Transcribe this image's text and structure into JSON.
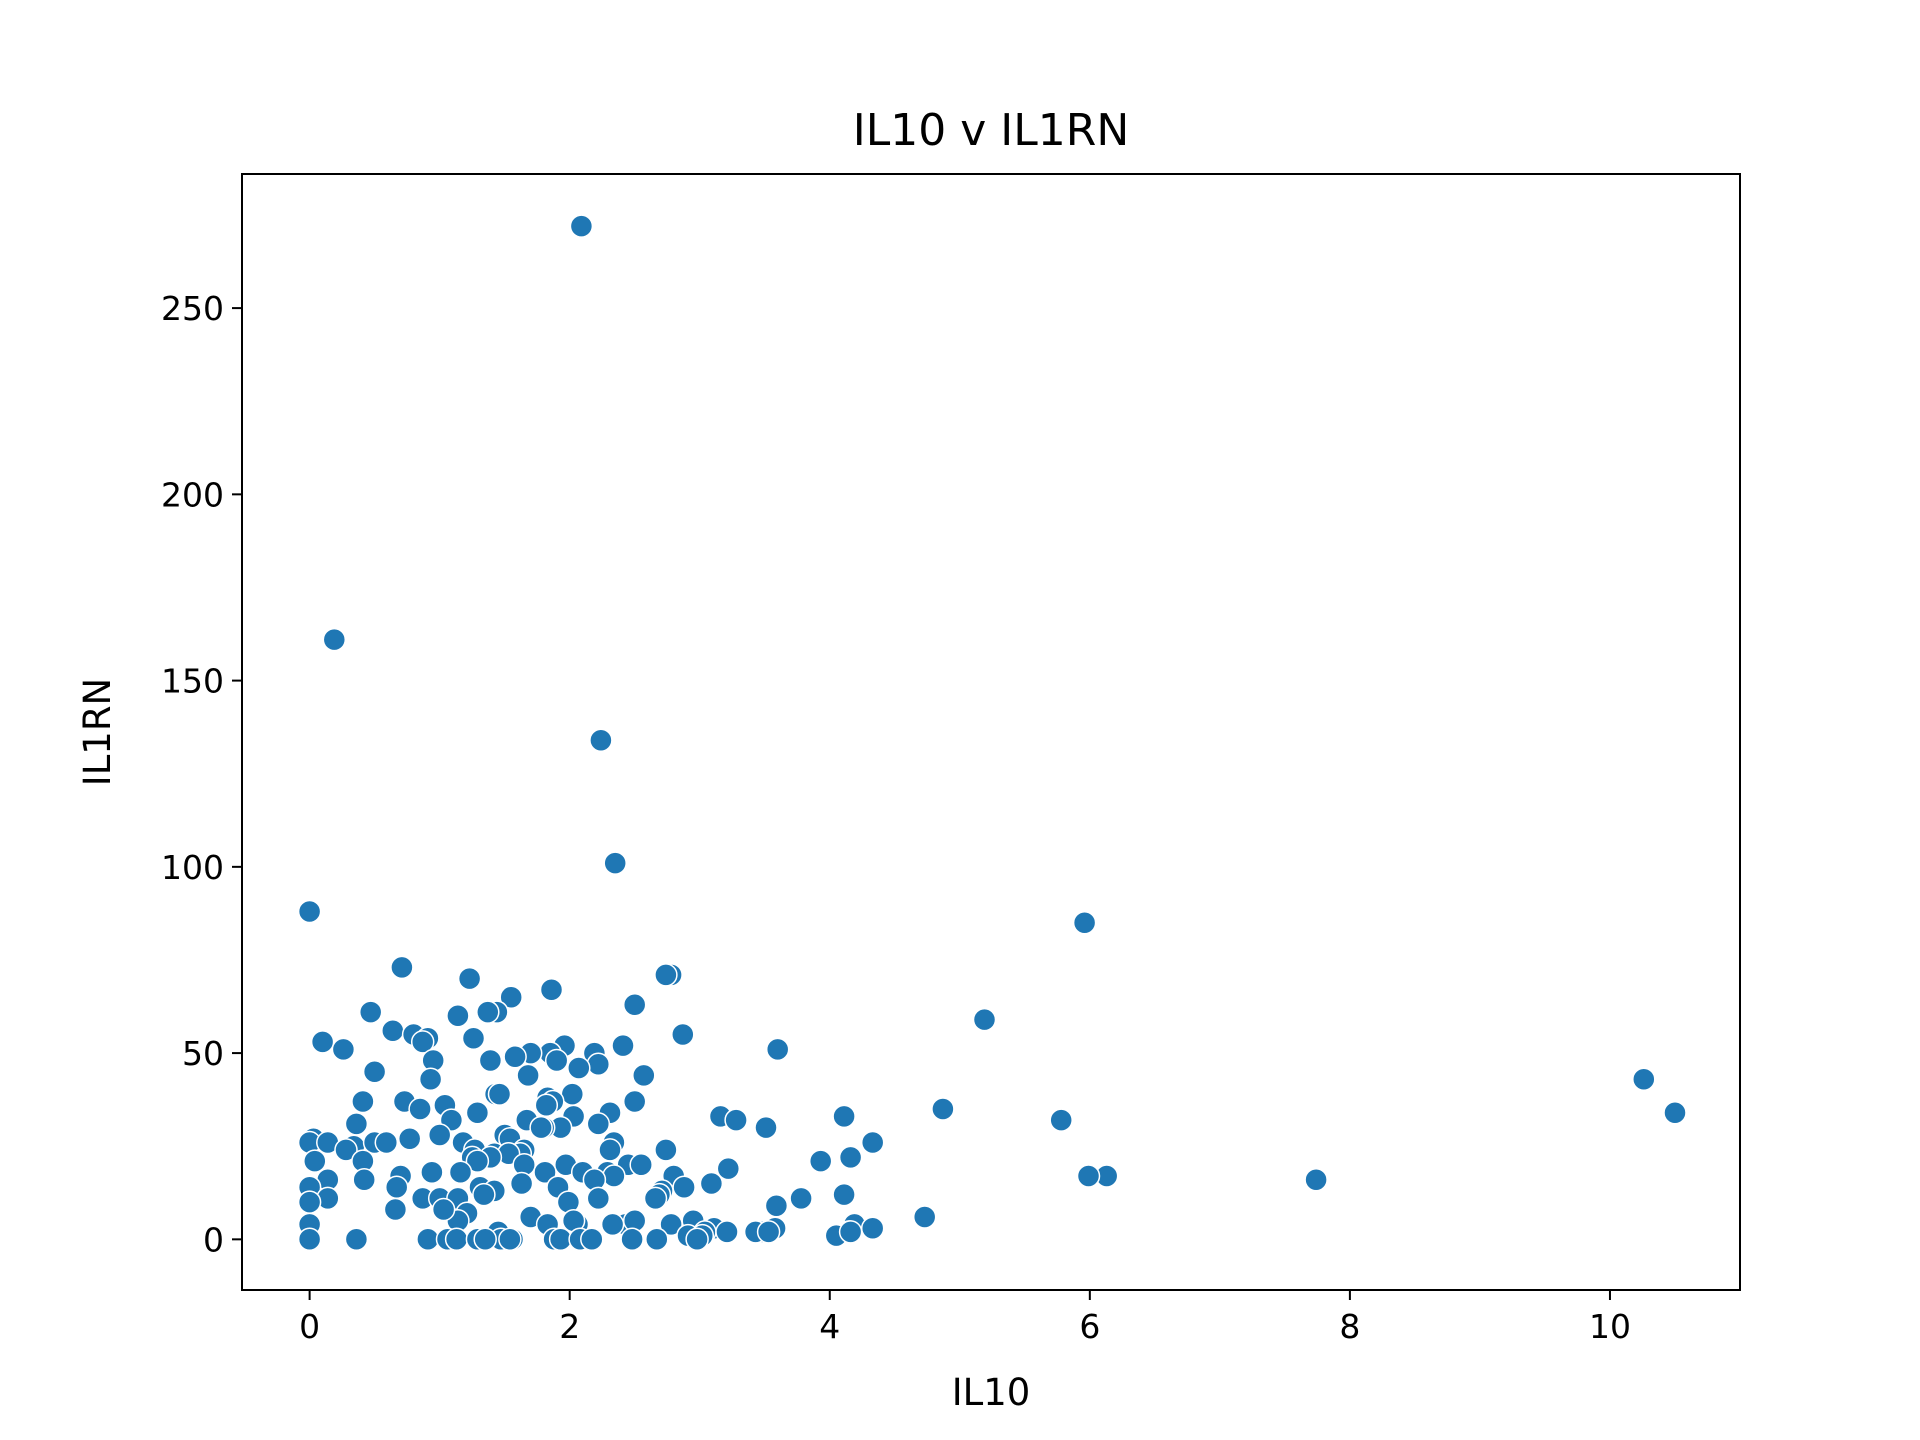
{
  "chart_data": {
    "type": "scatter",
    "title": "IL10 v IL1RN",
    "xlabel": "IL10",
    "ylabel": "IL1RN",
    "xlim": [
      -0.52,
      11.0
    ],
    "ylim": [
      -13.6,
      286.0
    ],
    "xticks": [
      0,
      2,
      4,
      6,
      8,
      10
    ],
    "yticks": [
      0,
      50,
      100,
      150,
      200,
      250
    ],
    "grid": false,
    "color": "#1f77b4",
    "edge_color": "#ffffff",
    "points": [
      [
        2.09,
        272
      ],
      [
        0.19,
        161
      ],
      [
        2.24,
        134
      ],
      [
        2.35,
        101
      ],
      [
        0.0,
        88
      ],
      [
        5.96,
        85
      ],
      [
        0.71,
        73
      ],
      [
        2.78,
        71
      ],
      [
        2.74,
        71
      ],
      [
        1.23,
        70
      ],
      [
        1.86,
        67
      ],
      [
        1.55,
        65
      ],
      [
        2.5,
        63
      ],
      [
        0.47,
        61
      ],
      [
        1.44,
        61
      ],
      [
        1.37,
        61
      ],
      [
        1.14,
        60
      ],
      [
        5.19,
        59
      ],
      [
        0.64,
        56
      ],
      [
        0.8,
        55
      ],
      [
        0.91,
        54
      ],
      [
        1.26,
        54
      ],
      [
        2.87,
        55
      ],
      [
        0.1,
        53
      ],
      [
        0.87,
        53
      ],
      [
        1.96,
        52
      ],
      [
        2.41,
        52
      ],
      [
        3.6,
        51
      ],
      [
        0.26,
        51
      ],
      [
        1.85,
        50
      ],
      [
        2.19,
        50
      ],
      [
        1.7,
        50
      ],
      [
        1.58,
        49
      ],
      [
        0.95,
        48
      ],
      [
        1.39,
        48
      ],
      [
        1.9,
        48
      ],
      [
        2.22,
        47
      ],
      [
        2.07,
        46
      ],
      [
        0.5,
        45
      ],
      [
        2.57,
        44
      ],
      [
        1.68,
        44
      ],
      [
        0.93,
        43
      ],
      [
        10.26,
        43
      ],
      [
        1.43,
        39
      ],
      [
        1.46,
        39
      ],
      [
        2.02,
        39
      ],
      [
        1.83,
        38
      ],
      [
        1.87,
        37
      ],
      [
        1.82,
        36
      ],
      [
        0.41,
        37
      ],
      [
        0.73,
        37
      ],
      [
        2.5,
        37
      ],
      [
        1.04,
        36
      ],
      [
        4.87,
        35
      ],
      [
        0.85,
        35
      ],
      [
        10.5,
        34
      ],
      [
        1.29,
        34
      ],
      [
        2.31,
        34
      ],
      [
        2.03,
        33
      ],
      [
        4.11,
        33
      ],
      [
        3.16,
        33
      ],
      [
        3.28,
        32
      ],
      [
        5.78,
        32
      ],
      [
        1.09,
        32
      ],
      [
        1.67,
        32
      ],
      [
        0.36,
        31
      ],
      [
        2.22,
        31
      ],
      [
        1.93,
        30
      ],
      [
        3.51,
        30
      ],
      [
        1.8,
        30
      ],
      [
        1.78,
        30
      ],
      [
        1.0,
        28
      ],
      [
        1.5,
        28
      ],
      [
        1.54,
        27
      ],
      [
        0.77,
        27
      ],
      [
        0.03,
        27
      ],
      [
        1.18,
        26
      ],
      [
        0.0,
        26
      ],
      [
        0.14,
        26
      ],
      [
        0.34,
        25
      ],
      [
        0.5,
        26
      ],
      [
        0.59,
        26
      ],
      [
        4.33,
        26
      ],
      [
        2.34,
        26
      ],
      [
        1.27,
        24
      ],
      [
        0.28,
        24
      ],
      [
        1.65,
        24
      ],
      [
        2.74,
        24
      ],
      [
        2.31,
        24
      ],
      [
        1.62,
        23
      ],
      [
        1.42,
        23
      ],
      [
        1.53,
        23
      ],
      [
        4.16,
        22
      ],
      [
        1.25,
        22
      ],
      [
        1.39,
        22
      ],
      [
        0.04,
        21
      ],
      [
        0.41,
        21
      ],
      [
        1.29,
        21
      ],
      [
        3.93,
        21
      ],
      [
        2.45,
        20
      ],
      [
        1.97,
        20
      ],
      [
        1.65,
        20
      ],
      [
        2.55,
        20
      ],
      [
        3.22,
        19
      ],
      [
        2.1,
        18
      ],
      [
        1.81,
        18
      ],
      [
        0.94,
        18
      ],
      [
        1.16,
        18
      ],
      [
        2.29,
        18
      ],
      [
        2.8,
        17
      ],
      [
        0.7,
        17
      ],
      [
        6.13,
        17
      ],
      [
        5.99,
        17
      ],
      [
        2.34,
        17
      ],
      [
        2.19,
        16
      ],
      [
        0.14,
        16
      ],
      [
        0.42,
        16
      ],
      [
        7.74,
        16
      ],
      [
        1.63,
        15
      ],
      [
        2.88,
        14
      ],
      [
        3.09,
        15
      ],
      [
        0.0,
        14
      ],
      [
        1.31,
        14
      ],
      [
        0.67,
        14
      ],
      [
        1.91,
        14
      ],
      [
        1.42,
        13
      ],
      [
        2.71,
        13
      ],
      [
        2.69,
        12
      ],
      [
        1.34,
        12
      ],
      [
        4.11,
        12
      ],
      [
        0.14,
        11
      ],
      [
        0.87,
        11
      ],
      [
        1.0,
        11
      ],
      [
        1.14,
        11
      ],
      [
        1.99,
        10
      ],
      [
        2.22,
        11
      ],
      [
        2.66,
        11
      ],
      [
        3.78,
        11
      ],
      [
        0.0,
        10
      ],
      [
        3.59,
        9
      ],
      [
        0.66,
        8
      ],
      [
        1.21,
        7
      ],
      [
        1.7,
        6
      ],
      [
        1.14,
        5
      ],
      [
        1.03,
        8
      ],
      [
        4.73,
        6
      ],
      [
        0.0,
        4
      ],
      [
        2.43,
        4
      ],
      [
        1.83,
        4
      ],
      [
        2.06,
        4
      ],
      [
        2.33,
        4
      ],
      [
        2.78,
        4
      ],
      [
        2.5,
        5
      ],
      [
        2.95,
        5
      ],
      [
        3.58,
        3
      ],
      [
        4.19,
        4
      ],
      [
        3.11,
        3
      ],
      [
        2.03,
        5
      ],
      [
        3.04,
        2
      ],
      [
        3.21,
        2
      ],
      [
        3.48,
        2
      ],
      [
        4.33,
        3
      ],
      [
        4.15,
        2
      ],
      [
        2.91,
        1
      ],
      [
        3.02,
        1
      ],
      [
        3.43,
        2
      ],
      [
        3.53,
        2
      ],
      [
        4.05,
        1
      ],
      [
        4.16,
        2
      ],
      [
        1.45,
        2
      ],
      [
        0.0,
        0
      ],
      [
        0.36,
        0
      ],
      [
        0.91,
        0
      ],
      [
        1.06,
        0
      ],
      [
        1.13,
        0
      ],
      [
        1.29,
        0
      ],
      [
        1.47,
        0
      ],
      [
        1.56,
        0
      ],
      [
        1.88,
        0
      ],
      [
        1.93,
        0
      ],
      [
        2.08,
        0
      ],
      [
        2.17,
        0
      ],
      [
        2.48,
        0
      ],
      [
        2.67,
        0
      ],
      [
        2.98,
        0
      ],
      [
        1.35,
        0
      ],
      [
        1.54,
        0
      ]
    ]
  }
}
